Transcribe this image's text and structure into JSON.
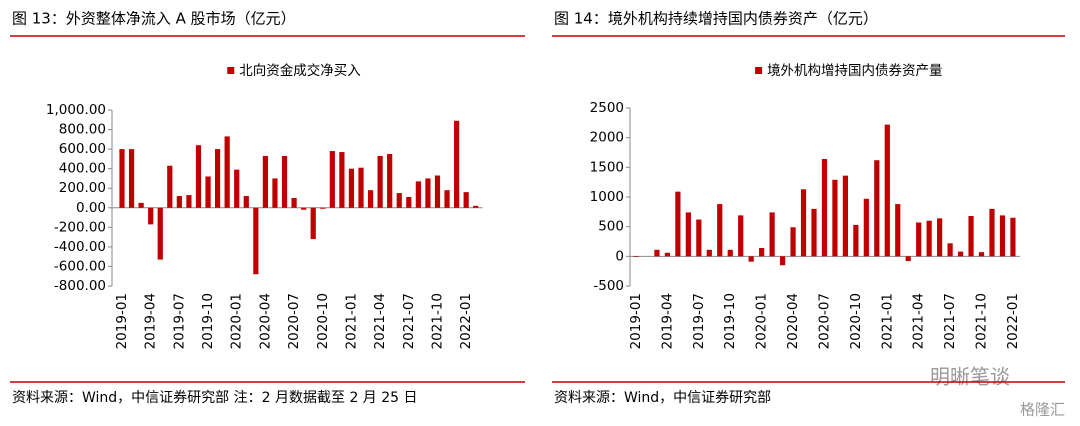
{
  "chart_data": [
    {
      "type": "bar",
      "title": "图 13：外资整体净流入 A 股市场（亿元）",
      "source": "资料来源：Wind，中信证券研究部 注：2 月数据截至 2 月 25 日",
      "categories": [
        "2019-01",
        null,
        null,
        "2019-04",
        null,
        null,
        "2019-07",
        null,
        null,
        "2019-10",
        null,
        null,
        "2020-01",
        null,
        null,
        "2020-04",
        null,
        null,
        "2020-07",
        null,
        null,
        "2020-10",
        null,
        null,
        "2021-01",
        null,
        null,
        "2021-04",
        null,
        null,
        "2021-07",
        null,
        null,
        "2021-10",
        null,
        null,
        "2022-01",
        null
      ],
      "series": [
        {
          "name": "北向资金成交净买入",
          "color": "#c00000",
          "values": [
            600,
            600,
            50,
            -170,
            -530,
            430,
            120,
            130,
            640,
            320,
            600,
            730,
            390,
            120,
            -680,
            530,
            300,
            530,
            100,
            -20,
            -320,
            -10,
            580,
            570,
            400,
            410,
            180,
            530,
            550,
            150,
            110,
            270,
            300,
            330,
            180,
            890,
            160,
            20
          ]
        }
      ],
      "ylim": [
        -800,
        1000
      ],
      "yticks": [
        {
          "value": -800,
          "label": "-800.00"
        },
        {
          "value": -600,
          "label": "-600.00"
        },
        {
          "value": -400,
          "label": "-400.00"
        },
        {
          "value": -200,
          "label": "-200.00"
        },
        {
          "value": 0,
          "label": "0.00"
        },
        {
          "value": 200,
          "label": "200.00"
        },
        {
          "value": 400,
          "label": "400.00"
        },
        {
          "value": 600,
          "label": "600.00"
        },
        {
          "value": 800,
          "label": "800.00"
        },
        {
          "value": 1000,
          "label": "1,000.00"
        }
      ]
    },
    {
      "type": "bar",
      "title": "图 14：境外机构持续增持国内债券资产（亿元）",
      "source": "资料来源：Wind，中信证券研究部",
      "categories": [
        "2019-01",
        null,
        null,
        "2019-04",
        null,
        null,
        "2019-07",
        null,
        null,
        "2019-10",
        null,
        null,
        "2020-01",
        null,
        null,
        "2020-04",
        null,
        null,
        "2020-07",
        null,
        null,
        "2020-10",
        null,
        null,
        "2021-01",
        null,
        null,
        "2021-04",
        null,
        null,
        "2021-07",
        null,
        null,
        "2021-10",
        null,
        null,
        "2022-01"
      ],
      "series": [
        {
          "name": "境外机构增持国内债券资产量",
          "color": "#c00000",
          "values": [
            -10,
            0,
            110,
            60,
            1090,
            740,
            620,
            110,
            880,
            110,
            690,
            -90,
            140,
            740,
            -150,
            490,
            1130,
            800,
            1640,
            1290,
            1360,
            530,
            970,
            1620,
            2220,
            880,
            -80,
            570,
            600,
            640,
            220,
            80,
            680,
            70,
            800,
            690,
            650
          ]
        }
      ],
      "ylim": [
        -500,
        2500
      ],
      "yticks": [
        -500,
        0,
        500,
        1000,
        1500,
        2000,
        2500
      ]
    }
  ],
  "watermark": [
    "明晰笔谈",
    "格隆汇"
  ]
}
